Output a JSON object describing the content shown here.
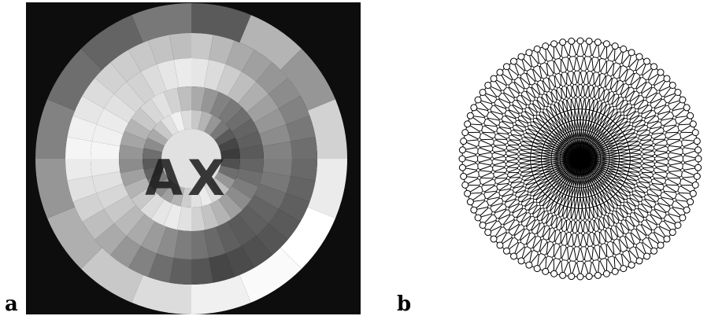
{
  "figure": {
    "panel_a": {
      "label": "a",
      "embedded_text": "AX",
      "background_color": "#0d0d0d",
      "ink_color": "#1a1a1a",
      "rings": [
        {
          "sectors": 16,
          "gray_values": [
            90,
            180,
            150,
            210,
            235,
            255,
            250,
            240,
            220,
            200,
            175,
            150,
            130,
            110,
            100,
            120
          ]
        },
        {
          "sectors": 36,
          "gray_values": [
            200,
            185,
            170,
            160,
            150,
            140,
            130,
            120,
            110,
            105,
            100,
            95,
            90,
            85,
            80,
            75,
            70,
            85,
            95,
            110,
            130,
            150,
            170,
            190,
            210,
            225,
            235,
            245,
            240,
            230,
            220,
            210,
            205,
            200,
            195,
            190
          ]
        },
        {
          "sectors": 36,
          "gray_values": [
            230,
            220,
            205,
            190,
            175,
            160,
            150,
            140,
            130,
            125,
            120,
            110,
            100,
            95,
            90,
            95,
            105,
            115,
            125,
            140,
            155,
            170,
            185,
            200,
            215,
            225,
            235,
            245,
            240,
            235,
            225,
            215,
            210,
            220,
            230,
            235
          ]
        },
        {
          "sectors": 32,
          "gray_values": [
            170,
            150,
            130,
            120,
            110,
            100,
            95,
            90,
            100,
            110,
            125,
            140,
            160,
            180,
            195,
            210,
            225,
            235,
            230,
            220,
            200,
            180,
            160,
            140,
            150,
            165,
            180,
            200,
            215,
            225,
            210,
            190
          ]
        },
        {
          "sectors": 28,
          "gray_values": [
            200,
            180,
            150,
            120,
            90,
            70,
            60,
            80,
            110,
            150,
            190,
            220,
            235,
            225,
            205,
            180,
            160,
            140,
            120,
            100,
            90,
            110,
            140,
            170,
            200,
            225,
            240,
            220
          ]
        }
      ]
    },
    "panel_b": {
      "label": "b",
      "rings": 12,
      "nodes_per_ring": 84,
      "boundary_nodes": 84,
      "line_color": "#000000",
      "node_fill": "#ffffff"
    }
  }
}
